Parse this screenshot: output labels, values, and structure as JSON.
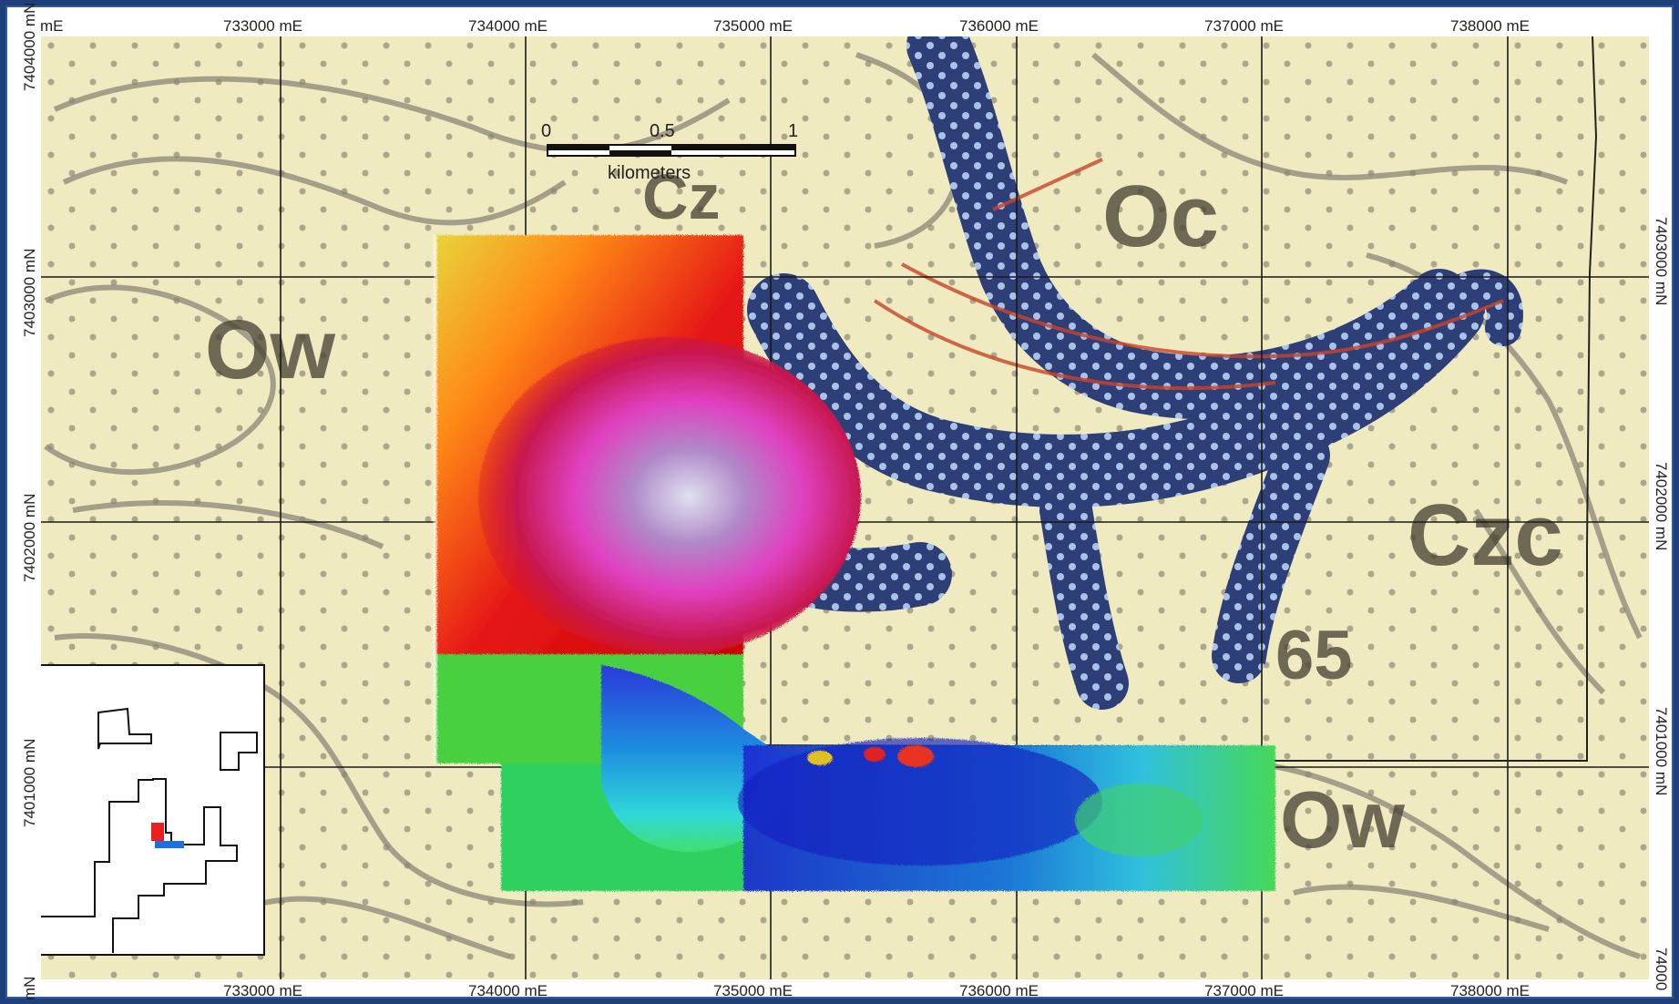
{
  "grid": {
    "eastings": [
      "733000 mE",
      "734000 mE",
      "735000 mE",
      "736000 mE",
      "737000 mE",
      "738000 mE"
    ],
    "northings": [
      "7403000 mN",
      "7402000 mN",
      "7401000 mN"
    ],
    "corner_top_left_easting": "mE",
    "corner_top_left_northing": "7404000 mN",
    "corner_bottom_left_northing": "mN",
    "corner_bottom_right_easting": "74000"
  },
  "scale_bar": {
    "ticks": [
      "0",
      "0.5",
      "1"
    ],
    "unit": "kilometers"
  },
  "geology_labels": {
    "upper_left": "Ow",
    "top_center": "Cz",
    "top_right": "Oc",
    "right": "Czc",
    "dip": "65",
    "bottom_right": "Ow"
  },
  "colors": {
    "background": "#efeac0",
    "formation_lines": "#8a8676",
    "grid_lines": "#1a1a1a",
    "blue_unit": "#2e3f78"
  }
}
